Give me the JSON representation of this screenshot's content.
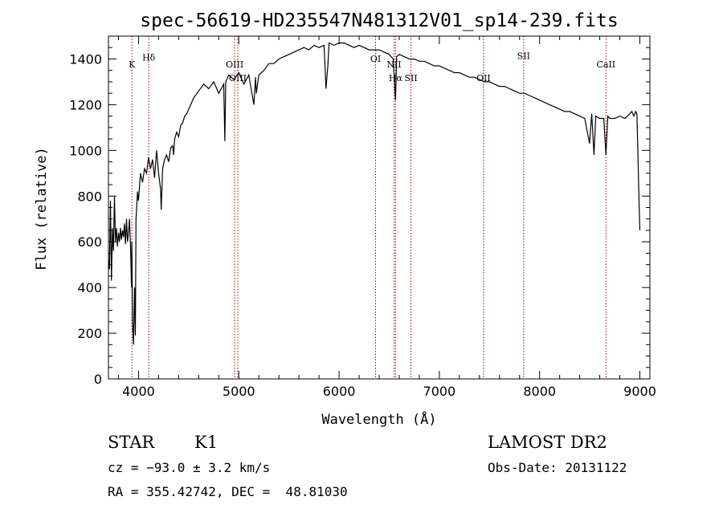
{
  "chart_data": {
    "type": "line",
    "title": "spec-56619-HD235547N481312V01_sp14-239.fits",
    "xlabel": "Wavelength (Å)",
    "ylabel": "Flux (relative)",
    "xlim": [
      3700,
      9100
    ],
    "ylim": [
      0,
      1500
    ],
    "x_ticks": [
      4000,
      5000,
      6000,
      7000,
      8000,
      9000
    ],
    "y_ticks": [
      0,
      200,
      400,
      600,
      800,
      1000,
      1200,
      1400
    ],
    "grid": false,
    "series": [
      {
        "x": [
          3700,
          3710,
          3720,
          3730,
          3740,
          3750,
          3760,
          3770,
          3780,
          3790,
          3800,
          3810,
          3820,
          3830,
          3840,
          3850,
          3860,
          3870,
          3880,
          3890,
          3900,
          3910,
          3920,
          3930,
          3933,
          3940,
          3950,
          3960,
          3968,
          3975,
          3990,
          4000,
          4020,
          4040,
          4060,
          4080,
          4100,
          4120,
          4140,
          4160,
          4180,
          4200,
          4220,
          4226,
          4240,
          4260,
          4280,
          4300,
          4320,
          4340,
          4350,
          4360,
          4380,
          4400,
          4420,
          4440,
          4460,
          4480,
          4500,
          4550,
          4600,
          4650,
          4700,
          4750,
          4800,
          4850,
          4861,
          4870,
          4900,
          4950,
          5000,
          5050,
          5100,
          5150,
          5167,
          5175,
          5200,
          5250,
          5300,
          5350,
          5400,
          5450,
          5500,
          5550,
          5600,
          5650,
          5700,
          5750,
          5800,
          5850,
          5870,
          5890,
          5900,
          5950,
          6000,
          6050,
          6100,
          6150,
          6200,
          6250,
          6300,
          6350,
          6400,
          6450,
          6500,
          6540,
          6563,
          6575,
          6600,
          6650,
          6700,
          6750,
          6800,
          6850,
          6900,
          6950,
          7000,
          7050,
          7100,
          7150,
          7200,
          7250,
          7300,
          7350,
          7400,
          7450,
          7500,
          7550,
          7600,
          7650,
          7700,
          7750,
          7800,
          7850,
          7900,
          7950,
          8000,
          8050,
          8100,
          8150,
          8200,
          8250,
          8300,
          8350,
          8400,
          8450,
          8498,
          8520,
          8542,
          8560,
          8600,
          8640,
          8662,
          8680,
          8700,
          8750,
          8800,
          8850,
          8900,
          8920,
          8940,
          8960,
          8970,
          8980,
          8990,
          9000
        ],
        "y": [
          520,
          480,
          780,
          430,
          660,
          560,
          800,
          600,
          660,
          580,
          640,
          600,
          660,
          610,
          650,
          620,
          680,
          590,
          700,
          600,
          640,
          700,
          580,
          400,
          600,
          240,
          150,
          400,
          190,
          700,
          820,
          780,
          900,
          860,
          920,
          900,
          970,
          920,
          960,
          880,
          1000,
          900,
          830,
          740,
          920,
          960,
          980,
          950,
          1010,
          1020,
          980,
          1050,
          1080,
          1060,
          1110,
          1120,
          1150,
          1160,
          1180,
          1230,
          1260,
          1290,
          1270,
          1300,
          1250,
          1290,
          1040,
          1300,
          1330,
          1310,
          1340,
          1290,
          1330,
          1200,
          1320,
          1250,
          1330,
          1350,
          1380,
          1380,
          1400,
          1410,
          1420,
          1430,
          1440,
          1450,
          1440,
          1460,
          1450,
          1460,
          1270,
          1380,
          1470,
          1460,
          1470,
          1470,
          1460,
          1450,
          1460,
          1450,
          1440,
          1440,
          1440,
          1430,
          1420,
          1400,
          1220,
          1410,
          1420,
          1410,
          1400,
          1400,
          1390,
          1390,
          1380,
          1370,
          1370,
          1360,
          1350,
          1340,
          1340,
          1330,
          1320,
          1320,
          1310,
          1300,
          1300,
          1290,
          1280,
          1280,
          1270,
          1260,
          1250,
          1250,
          1240,
          1230,
          1220,
          1210,
          1200,
          1190,
          1180,
          1170,
          1170,
          1160,
          1150,
          1140,
          1030,
          1160,
          980,
          1150,
          1140,
          1140,
          980,
          1150,
          1140,
          1140,
          1150,
          1140,
          1160,
          1170,
          1150,
          1170,
          1160,
          1000,
          800,
          650
        ]
      }
    ],
    "line_markers": [
      {
        "wavelength": 3934,
        "label": "K",
        "label_y": 1363
      },
      {
        "wavelength": 4102,
        "label": "Hδ",
        "label_y": 1392
      },
      {
        "wavelength": 4959,
        "label": "OIII",
        "label_y": 1363
      },
      {
        "wavelength": 4990,
        "label": "OIII",
        "label_y": 1303
      },
      {
        "wavelength": 6364,
        "label": "OI",
        "label_y": 1388
      },
      {
        "wavelength": 6548,
        "label": "NII",
        "label_y": 1363
      },
      {
        "wavelength": 6563,
        "label": "Hα",
        "label_y": 1303
      },
      {
        "wavelength": 6717,
        "label": "SII",
        "label_y": 1303
      },
      {
        "wavelength": 7441,
        "label": "OII",
        "label_y": 1303
      },
      {
        "wavelength": 7841,
        "label": "SII",
        "label_y": 1400
      },
      {
        "wavelength": 8662,
        "label": "CaII",
        "label_y": 1363
      }
    ],
    "colors": {
      "spectrum": "#000000",
      "markers": "#b00000"
    }
  },
  "info": {
    "object_class": "STAR",
    "subclass": "K1",
    "survey": "LAMOST DR2",
    "cz": "cz = −93.0 ± 3.2 km/s",
    "obs_date": "Obs-Date: 20131122",
    "coords": "RA = 355.42742, DEC =  48.81030"
  }
}
